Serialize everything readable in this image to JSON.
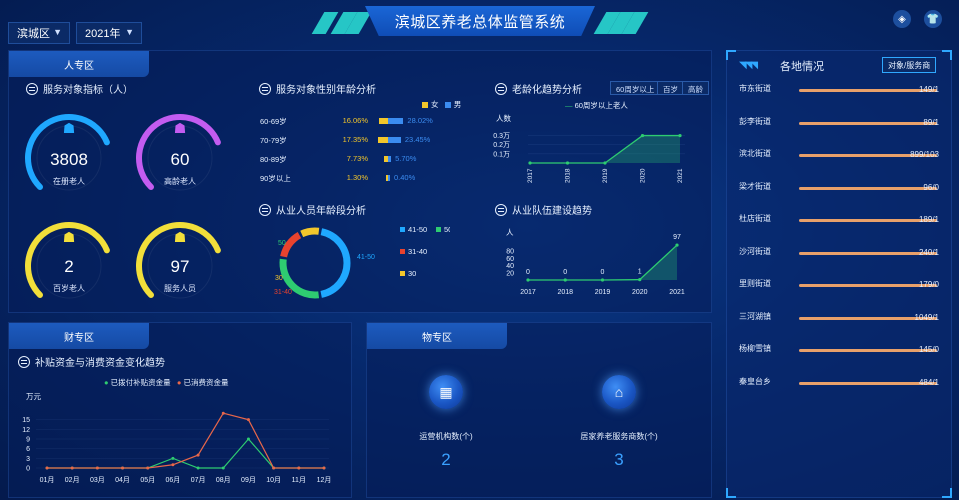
{
  "header": {
    "title": "滨城区养老总体监管系统",
    "district_select": "滨城区",
    "year_select": "2021年",
    "icons": [
      "cube-icon",
      "shirt-icon"
    ]
  },
  "people_panel": {
    "tab": "人专区",
    "indicators": {
      "title": "服务对象指标（人）",
      "gauges": [
        {
          "value": "3808",
          "label": "在册老人",
          "color": "#1fa8ff",
          "fill": 0.75
        },
        {
          "value": "60",
          "label": "高龄老人",
          "color": "#c35cf0",
          "fill": 0.75
        },
        {
          "value": "2",
          "label": "百岁老人",
          "color": "#f2df3a",
          "fill": 0.75
        },
        {
          "value": "97",
          "label": "服务人员",
          "color": "#f2df3a",
          "fill": 0.75
        }
      ]
    },
    "gender_age": {
      "title": "服务对象性别年龄分析",
      "legend": [
        {
          "name": "女",
          "color": "#f2c62b"
        },
        {
          "name": "男",
          "color": "#3b8cf0"
        }
      ],
      "rows": [
        {
          "label": "60-69岁",
          "female": "16.06%",
          "male": "28.02%",
          "female_val": 16.06,
          "male_val": 28.02
        },
        {
          "label": "70-79岁",
          "female": "17.35%",
          "male": "23.45%",
          "female_val": 17.35,
          "male_val": 23.45
        },
        {
          "label": "80-89岁",
          "female": "7.73%",
          "male": "5.70%",
          "female_val": 7.73,
          "male_val": 5.7
        },
        {
          "label": "90岁以上",
          "female": "1.30%",
          "male": "0.40%",
          "female_val": 1.3,
          "male_val": 0.4
        }
      ]
    },
    "aging": {
      "title": "老龄化趋势分析",
      "tabs": [
        "60周岁以上",
        "百岁",
        "高龄"
      ],
      "legend": "60周岁以上老人",
      "ylabel": "人数",
      "yticks": [
        "0.3万",
        "0.2万",
        "0.1万"
      ]
    },
    "staff_age": {
      "title": "从业人员年龄段分析",
      "legend": [
        {
          "name": "41-50",
          "color": "#1fa8ff"
        },
        {
          "name": "50",
          "color": "#2ecc71"
        },
        {
          "name": "31-40",
          "color": "#e8432e"
        },
        {
          "name": "30",
          "color": "#f2c62b"
        }
      ],
      "labels": {
        "a": "50",
        "b": "41-50",
        "c": "30",
        "d": "31-40"
      }
    },
    "team": {
      "title": "从业队伍建设趋势",
      "ylabel": "人",
      "yticks": [
        "80",
        "60",
        "40",
        "20"
      ]
    }
  },
  "finance_panel": {
    "tab": "财专区",
    "title": "补贴资金与消费资金变化趋势",
    "legend": [
      "已拨付补贴资金量",
      "已消费资金量"
    ],
    "unit": "万元",
    "yticks": [
      "15",
      "12",
      "9",
      "6",
      "3",
      "0"
    ]
  },
  "goods_panel": {
    "tab": "物专区",
    "items": [
      {
        "label": "运营机构数(个)",
        "value": "2",
        "icon": "building-icon"
      },
      {
        "label": "居家养老服务商数(个)",
        "value": "3",
        "icon": "home-heart-icon"
      }
    ]
  },
  "regions_panel": {
    "title": "各地情况",
    "button": "对象/服务商",
    "rows": [
      {
        "name": "市东街道",
        "value": "149/1"
      },
      {
        "name": "彭李街道",
        "value": "89/1"
      },
      {
        "name": "滨北街道",
        "value": "899/103"
      },
      {
        "name": "梁才街道",
        "value": "96/0"
      },
      {
        "name": "杜店街道",
        "value": "189/1"
      },
      {
        "name": "沙河街道",
        "value": "240/1"
      },
      {
        "name": "里则街道",
        "value": "179/0"
      },
      {
        "name": "三河湖镇",
        "value": "1049/1"
      },
      {
        "name": "杨柳雪镇",
        "value": "145/0"
      },
      {
        "name": "秦皇台乡",
        "value": "484/1"
      }
    ]
  },
  "chart_data": [
    {
      "type": "line",
      "title": "老龄化趋势分析",
      "x": [
        "2017",
        "2018",
        "2019",
        "2020",
        "2021"
      ],
      "series": [
        {
          "name": "60周岁以上老人",
          "values": [
            0,
            0,
            0,
            0.3,
            0.3
          ]
        }
      ],
      "ylabel": "人数",
      "ylim": [
        0,
        0.35
      ]
    },
    {
      "type": "pie",
      "title": "从业人员年龄段分析",
      "categories": [
        "41-50",
        "50",
        "31-40",
        "30"
      ],
      "values": [
        45,
        30,
        15,
        10
      ]
    },
    {
      "type": "line",
      "title": "从业队伍建设趋势",
      "x": [
        "2017",
        "2018",
        "2019",
        "2020",
        "2021"
      ],
      "series": [
        {
          "name": "人",
          "values": [
            0,
            0,
            0,
            1,
            97
          ]
        }
      ],
      "ylabel": "人",
      "ylim": [
        0,
        100
      ]
    },
    {
      "type": "line",
      "title": "补贴资金与消费资金变化趋势",
      "x": [
        "01月",
        "02月",
        "03月",
        "04月",
        "05月",
        "06月",
        "07月",
        "08月",
        "09月",
        "10月",
        "11月",
        "12月"
      ],
      "series": [
        {
          "name": "已拨付补贴资金量",
          "values": [
            0,
            0,
            0,
            0,
            0,
            3,
            0,
            0,
            9,
            0,
            0,
            0
          ],
          "color": "#2ecc71"
        },
        {
          "name": "已消费资金量",
          "values": [
            0,
            0,
            0,
            0,
            0,
            1,
            4,
            17,
            15,
            0,
            0,
            0
          ],
          "color": "#e8674a"
        }
      ],
      "ylabel": "万元",
      "ylim": [
        0,
        18
      ]
    }
  ]
}
